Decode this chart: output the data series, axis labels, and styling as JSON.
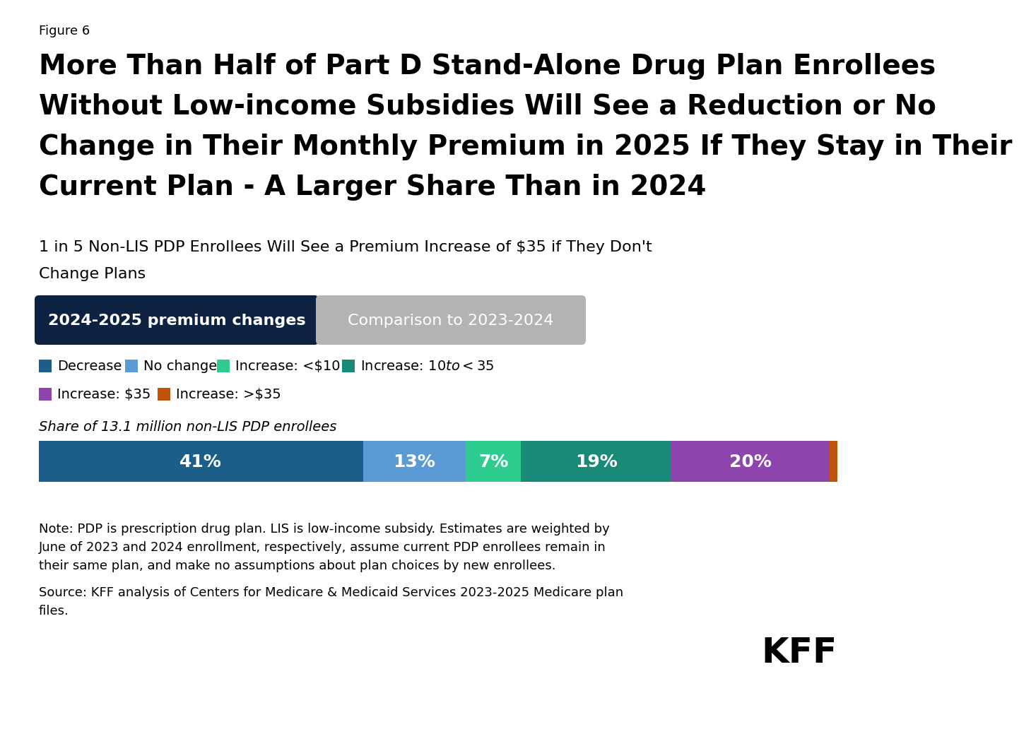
{
  "figure_label": "Figure 6",
  "title_line1": "More Than Half of Part D Stand-Alone Drug Plan Enrollees",
  "title_line2": "Without Low-income Subsidies Will See a Reduction or No",
  "title_line3": "Change in Their Monthly Premium in 2025 If They Stay in Their",
  "title_line4": "Current Plan - A Larger Share Than in 2024",
  "subtitle_line1": "1 in 5 Non-LIS PDP Enrollees Will See a Premium Increase of $35 if They Don't",
  "subtitle_line2": "Change Plans",
  "tab1_label": "2024-2025 premium changes",
  "tab2_label": "Comparison to 2023-2024",
  "tab1_color": "#0d2240",
  "tab2_color": "#b3b3b3",
  "legend_row1": [
    {
      "label": "Decrease",
      "color": "#1b5e8a"
    },
    {
      "label": "No change",
      "color": "#5b9bd5"
    },
    {
      "label": "Increase: <$10",
      "color": "#2ecc8e"
    },
    {
      "label": "Increase: $10 to <$35",
      "color": "#1a8a78"
    }
  ],
  "legend_row2": [
    {
      "label": "Increase: $35",
      "color": "#8e44ad"
    },
    {
      "label": "Increase: >$35",
      "color": "#c0520a"
    }
  ],
  "bar_label": "Share of 13.1 million non-LIS PDP enrollees",
  "bar_segments": [
    {
      "label": "41%",
      "value": 41,
      "color": "#1b5e8a"
    },
    {
      "label": "13%",
      "value": 13,
      "color": "#5b9bd5"
    },
    {
      "label": "7%",
      "value": 7,
      "color": "#2ecc8e"
    },
    {
      "label": "19%",
      "value": 19,
      "color": "#1a8a78"
    },
    {
      "label": "20%",
      "value": 20,
      "color": "#8e44ad"
    },
    {
      "label": "1%",
      "value": 1,
      "color": "#c0520a"
    }
  ],
  "note_line1": "Note: PDP is prescription drug plan. LIS is low-income subsidy. Estimates are weighted by",
  "note_line2": "June of 2023 and 2024 enrollment, respectively, assume current PDP enrollees remain in",
  "note_line3": "their same plan, and make no assumptions about plan choices by new enrollees.",
  "source_line1": "Source: KFF analysis of Centers for Medicare & Medicaid Services 2023-2025 Medicare plan",
  "source_line2": "files.",
  "kff_label": "KFF",
  "background_color": "#ffffff",
  "text_color": "#000000",
  "bar_text_color": "#ffffff"
}
